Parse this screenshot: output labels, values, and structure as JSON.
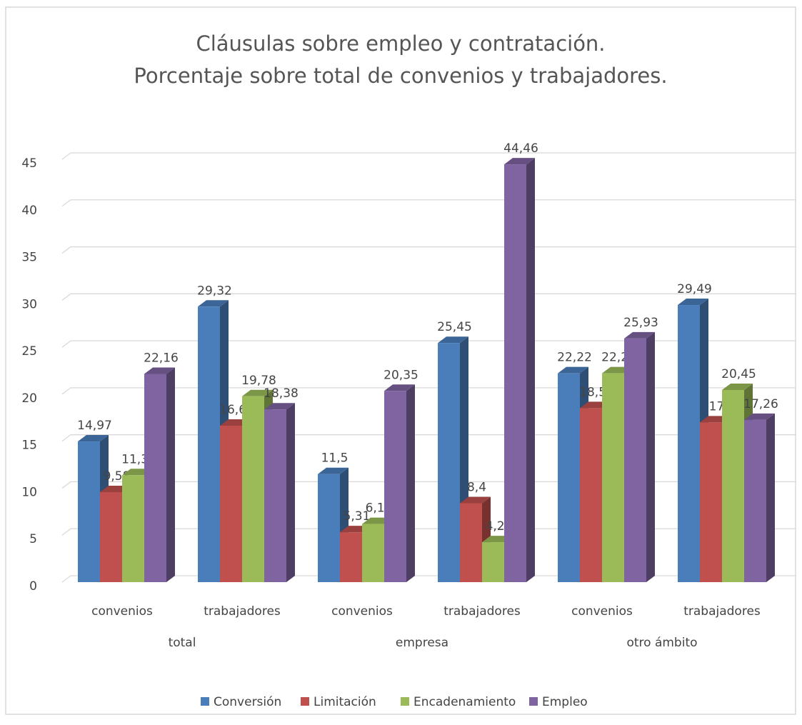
{
  "chart_data": {
    "type": "bar",
    "title": [
      "Cláusulas sobre empleo y contratación.",
      "Porcentaje sobre total de convenios y trabajadores."
    ],
    "categories": [
      "convenios",
      "trabajadores",
      "convenios",
      "trabajadores",
      "convenios",
      "trabajadores"
    ],
    "groups": [
      "total",
      "empresa",
      "otro ámbito"
    ],
    "series": [
      {
        "name": "Conversión",
        "color": "#4a7ebb",
        "values": [
          14.97,
          29.32,
          11.5,
          25.45,
          22.22,
          29.49
        ],
        "value_labels": [
          "14,97",
          "29,32",
          "11,5",
          "25,45",
          "22,22",
          "29,49"
        ]
      },
      {
        "name": "Limitación",
        "color": "#c0504d",
        "values": [
          9.58,
          16.65,
          5.31,
          8.4,
          18.52,
          17
        ],
        "value_labels": [
          "9,58",
          "16,65",
          "5,31",
          "8,4",
          "18,52",
          "17"
        ]
      },
      {
        "name": "Encadenamiento",
        "color": "#9bbb59",
        "values": [
          11.38,
          19.78,
          6.19,
          4.25,
          22.22,
          20.45
        ],
        "value_labels": [
          "11,38",
          "19,78",
          "6,19",
          "4,25",
          "22,22",
          "20,45"
        ]
      },
      {
        "name": "Empleo",
        "color": "#8064a2",
        "values": [
          22.16,
          18.38,
          20.35,
          44.46,
          25.93,
          17.26
        ],
        "value_labels": [
          "22,16",
          "18,38",
          "20,35",
          "44,46",
          "25,93",
          "17,26"
        ]
      }
    ],
    "ylim": [
      0,
      45
    ],
    "yticks": [
      0,
      5,
      10,
      15,
      20,
      25,
      30,
      35,
      40,
      45
    ],
    "grid": true,
    "legend": "bottom"
  }
}
